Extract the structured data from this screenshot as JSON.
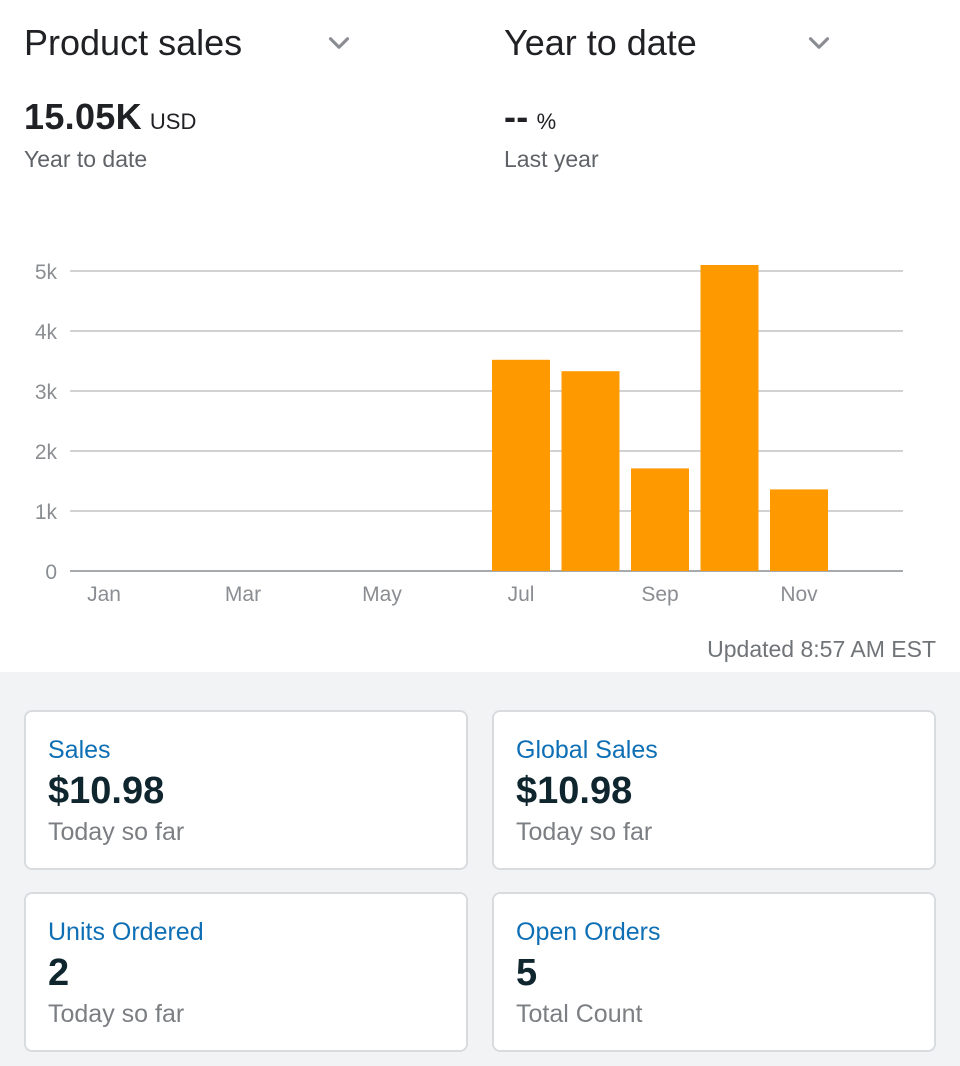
{
  "selectors": {
    "metric_label": "Product sales",
    "period_label": "Year to date"
  },
  "summary": {
    "total_value": "15.05K",
    "total_unit": "USD",
    "total_caption": "Year to date",
    "change_value": "--",
    "change_unit": "%",
    "change_caption": "Last year"
  },
  "chart_data": {
    "type": "bar",
    "categories": [
      "Jan",
      "Feb",
      "Mar",
      "Apr",
      "May",
      "Jun",
      "Jul",
      "Aug",
      "Sep",
      "Oct",
      "Nov",
      "Dec"
    ],
    "x_tick_labels": [
      "Jan",
      "",
      "Mar",
      "",
      "May",
      "",
      "Jul",
      "",
      "Sep",
      "",
      "Nov",
      ""
    ],
    "values": [
      0,
      0,
      0,
      0,
      0,
      0,
      3520,
      3330,
      1710,
      5100,
      1360,
      0
    ],
    "y_ticks": [
      0,
      1000,
      2000,
      3000,
      4000,
      5000
    ],
    "y_tick_labels": [
      "0",
      "1k",
      "2k",
      "3k",
      "4k",
      "5k"
    ],
    "ylim": [
      0,
      5000
    ],
    "grid": true,
    "bar_color": "#ff9900",
    "title": "",
    "xlabel": "",
    "ylabel": ""
  },
  "updated_text": "Updated 8:57 AM EST",
  "cards": [
    {
      "title": "Sales",
      "value": "$10.98",
      "subtitle": "Today so far"
    },
    {
      "title": "Global Sales",
      "value": "$10.98",
      "subtitle": "Today so far"
    },
    {
      "title": "Units Ordered",
      "value": "2",
      "subtitle": "Today so far"
    },
    {
      "title": "Open Orders",
      "value": "5",
      "subtitle": "Total Count"
    }
  ],
  "colors": {
    "accent_link": "#0f6fb5",
    "bar": "#ff9900",
    "panel_bg": "#f1f3f4"
  },
  "icons": {
    "metric_dropdown": "chevron-down-icon",
    "period_dropdown": "chevron-down-icon"
  }
}
